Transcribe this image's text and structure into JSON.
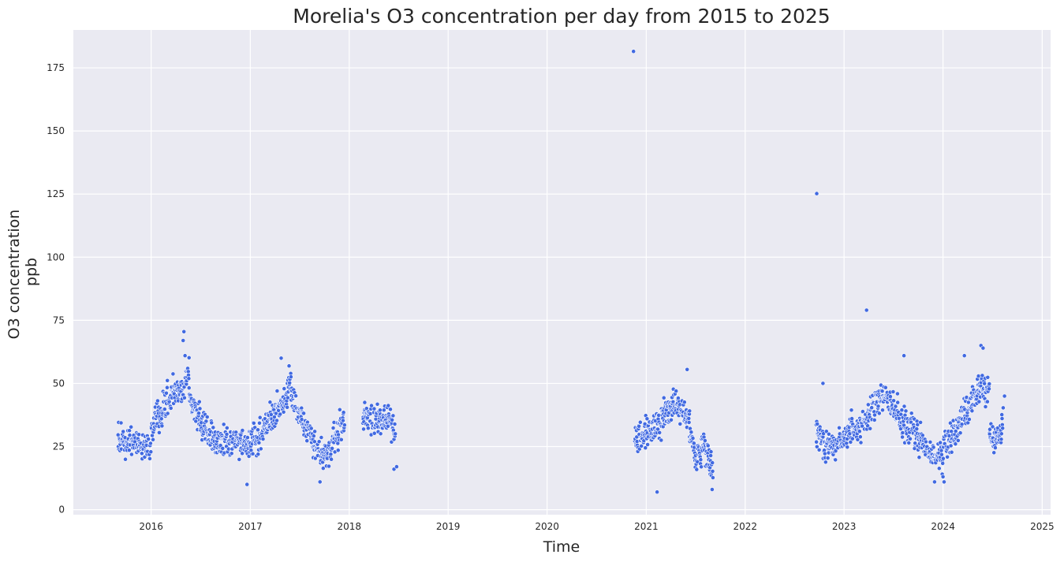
{
  "chart_data": {
    "type": "scatter",
    "title": "Morelia's O3 concentration per day from 2015 to 2025",
    "xlabel": "Time",
    "ylabel_line1": "O3 concentration",
    "ylabel_line2": "ppb",
    "xlim": [
      "2015-03-20",
      "2025-02-01"
    ],
    "ylim": [
      -2,
      190
    ],
    "x_ticks": [
      "2016",
      "2017",
      "2018",
      "2019",
      "2020",
      "2021",
      "2022",
      "2023",
      "2024",
      "2025"
    ],
    "y_ticks": [
      0,
      25,
      50,
      75,
      100,
      125,
      150,
      175
    ],
    "grid": true,
    "point_color": "#4169e1",
    "background_color": "#eaeaf2",
    "series": [
      {
        "segments": [
          {
            "start": "2015-09-01",
            "end": "2016-01-01",
            "points": [
              [
                0.0,
                28
              ],
              [
                0.5,
                27
              ],
              [
                0.75,
                25
              ],
              [
                1.0,
                27
              ],
              [
                1.0,
                32
              ]
            ]
          },
          {
            "start": "2016-01-01",
            "end": "2016-05-20",
            "points": [
              [
                0.0,
                32
              ],
              [
                0.5,
                45
              ],
              [
                0.85,
                48
              ],
              [
                1.0,
                57
              ]
            ]
          },
          {
            "start": "2016-05-20",
            "end": "2016-09-01",
            "points": [
              [
                0.0,
                45
              ],
              [
                0.3,
                37
              ],
              [
                0.7,
                30
              ],
              [
                1.0,
                27
              ]
            ]
          },
          {
            "start": "2016-09-01",
            "end": "2016-12-31",
            "points": [
              [
                0.0,
                27
              ],
              [
                0.5,
                28
              ],
              [
                1.0,
                26
              ]
            ]
          },
          {
            "start": "2016-12-31",
            "end": "2017-06-01",
            "points": [
              [
                0.0,
                26
              ],
              [
                0.4,
                33
              ],
              [
                0.8,
                43
              ],
              [
                1.0,
                52
              ]
            ]
          },
          {
            "start": "2017-06-01",
            "end": "2017-10-01",
            "points": [
              [
                0.0,
                45
              ],
              [
                0.3,
                37
              ],
              [
                0.65,
                27
              ],
              [
                1.0,
                20
              ]
            ]
          },
          {
            "start": "2017-10-01",
            "end": "2017-12-15",
            "points": [
              [
                0.0,
                20
              ],
              [
                0.5,
                28
              ],
              [
                1.0,
                37
              ]
            ]
          },
          {
            "start": "2018-02-20",
            "end": "2018-06-20",
            "points": [
              [
                0.0,
                37
              ],
              [
                0.5,
                35
              ],
              [
                0.8,
                36
              ],
              [
                1.0,
                30
              ]
            ]
          },
          {
            "start": "2020-11-20",
            "end": "2021-03-15",
            "points": [
              [
                0.0,
                28
              ],
              [
                0.4,
                30
              ],
              [
                0.7,
                33
              ],
              [
                1.0,
                38
              ]
            ]
          },
          {
            "start": "2021-03-15",
            "end": "2021-06-10",
            "points": [
              [
                0.0,
                38
              ],
              [
                0.4,
                42
              ],
              [
                0.8,
                38
              ],
              [
                1.0,
                36
              ]
            ]
          },
          {
            "start": "2021-06-10",
            "end": "2021-09-05",
            "points": [
              [
                0.0,
                30
              ],
              [
                0.3,
                20
              ],
              [
                0.6,
                27
              ],
              [
                1.0,
                15
              ]
            ]
          },
          {
            "start": "2022-09-20",
            "end": "2023-01-01",
            "points": [
              [
                0.0,
                32
              ],
              [
                0.3,
                25
              ],
              [
                0.6,
                24
              ],
              [
                1.0,
                28
              ]
            ]
          },
          {
            "start": "2023-01-01",
            "end": "2023-06-10",
            "points": [
              [
                0.0,
                30
              ],
              [
                0.4,
                33
              ],
              [
                0.75,
                42
              ],
              [
                1.0,
                47
              ]
            ]
          },
          {
            "start": "2023-06-10",
            "end": "2023-09-20",
            "points": [
              [
                0.0,
                45
              ],
              [
                0.4,
                37
              ],
              [
                0.7,
                32
              ],
              [
                1.0,
                31
              ]
            ]
          },
          {
            "start": "2023-09-20",
            "end": "2024-01-01",
            "points": [
              [
                0.0,
                31
              ],
              [
                0.4,
                25
              ],
              [
                0.7,
                21
              ],
              [
                1.0,
                22
              ]
            ]
          },
          {
            "start": "2024-01-01",
            "end": "2024-05-15",
            "points": [
              [
                0.0,
                25
              ],
              [
                0.3,
                30
              ],
              [
                0.6,
                38
              ],
              [
                1.0,
                48
              ]
            ]
          },
          {
            "start": "2024-05-15",
            "end": "2024-06-20",
            "points": [
              [
                0.0,
                50
              ],
              [
                1.0,
                48
              ]
            ]
          },
          {
            "start": "2024-06-20",
            "end": "2024-08-10",
            "points": [
              [
                0.0,
                30
              ],
              [
                0.5,
                28
              ],
              [
                1.0,
                33
              ]
            ]
          }
        ],
        "outliers": [
          [
            "2020-11-15",
            181.5
          ],
          [
            "2022-09-22",
            125.2
          ],
          [
            "2023-03-25",
            79
          ],
          [
            "2023-08-10",
            61
          ],
          [
            "2016-05-01",
            70.5
          ],
          [
            "2016-04-28",
            67
          ],
          [
            "2016-05-05",
            61
          ],
          [
            "2017-04-25",
            60
          ],
          [
            "2024-05-20",
            65
          ],
          [
            "2024-05-28",
            64
          ],
          [
            "2024-03-20",
            61
          ],
          [
            "2021-06-01",
            55.5
          ],
          [
            "2022-10-15",
            50
          ],
          [
            "2021-02-10",
            7
          ],
          [
            "2021-09-01",
            8
          ],
          [
            "2016-12-20",
            10
          ],
          [
            "2017-09-15",
            11
          ],
          [
            "2024-01-05",
            11
          ],
          [
            "2023-12-01",
            11
          ],
          [
            "2018-06-15",
            16
          ],
          [
            "2018-06-25",
            17
          ],
          [
            "2024-08-15",
            45
          ]
        ]
      }
    ]
  }
}
